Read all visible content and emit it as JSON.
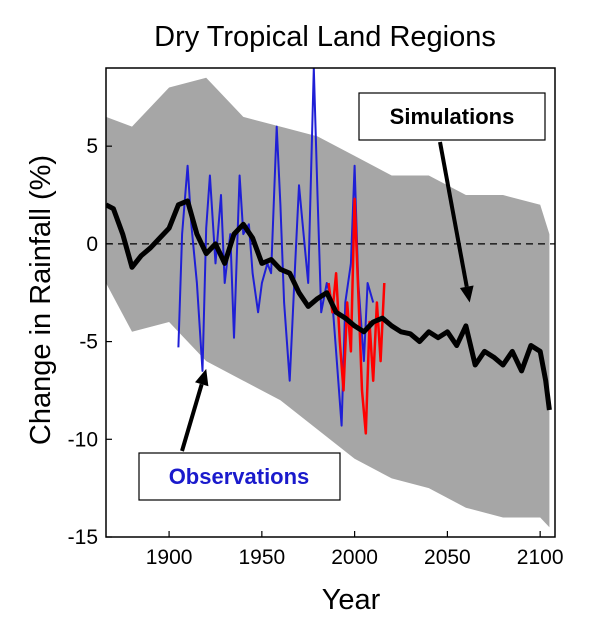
{
  "chart_data": {
    "type": "line",
    "title": "Dry Tropical Land Regions",
    "xlabel": "Year",
    "ylabel": "Change in Rainfall (%)",
    "xlim": [
      1866,
      2108
    ],
    "ylim": [
      -15,
      9
    ],
    "xticks": [
      1900,
      1950,
      2000,
      2050,
      2100
    ],
    "yticks": [
      5,
      0,
      -5,
      -10,
      -15
    ],
    "zero_line": "dashed",
    "colors": {
      "simulations_mean": "#000000",
      "simulations_range": "#a6a6a6",
      "observations": "#1f1fd6",
      "recent_observations": "#ff0000",
      "observations_label": "#1a1acc"
    },
    "series": [
      {
        "name": "Simulations",
        "x": [
          1866,
          1870,
          1875,
          1880,
          1885,
          1890,
          1895,
          1900,
          1905,
          1910,
          1915,
          1920,
          1925,
          1930,
          1935,
          1940,
          1945,
          1950,
          1955,
          1960,
          1965,
          1970,
          1975,
          1980,
          1985,
          1990,
          1995,
          2000,
          2005,
          2010,
          2015,
          2020,
          2025,
          2030,
          2035,
          2040,
          2045,
          2050,
          2055,
          2060,
          2065,
          2070,
          2075,
          2080,
          2085,
          2090,
          2095,
          2100,
          2103,
          2105
        ],
        "y": [
          2.0,
          1.8,
          0.5,
          -1.2,
          -0.6,
          -0.2,
          0.3,
          0.8,
          2.0,
          2.2,
          0.5,
          -0.5,
          0.0,
          -1.0,
          0.5,
          1.0,
          0.3,
          -1.0,
          -0.8,
          -1.3,
          -1.5,
          -2.5,
          -3.2,
          -2.8,
          -2.5,
          -3.5,
          -3.8,
          -4.2,
          -4.5,
          -4.0,
          -3.8,
          -4.2,
          -4.5,
          -4.6,
          -5.0,
          -4.5,
          -4.8,
          -4.5,
          -5.2,
          -4.2,
          -6.2,
          -5.5,
          -5.8,
          -6.2,
          -5.5,
          -6.5,
          -5.2,
          -5.5,
          -7.0,
          -8.5
        ]
      },
      {
        "name": "Simulations range",
        "x": [
          1866,
          1880,
          1900,
          1920,
          1940,
          1960,
          1980,
          2000,
          2020,
          2040,
          2060,
          2080,
          2100,
          2105
        ],
        "upper": [
          6.5,
          6.0,
          8.0,
          8.5,
          6.5,
          6.0,
          5.5,
          4.5,
          3.5,
          3.5,
          2.5,
          2.5,
          2.0,
          0.5
        ],
        "lower": [
          -2.0,
          -4.5,
          -4.0,
          -6.0,
          -7.0,
          -8.0,
          -9.5,
          -11.0,
          -12.0,
          -12.5,
          -13.5,
          -14.0,
          -14.0,
          -14.5
        ]
      },
      {
        "name": "Observations",
        "x": [
          1905,
          1907,
          1910,
          1912,
          1915,
          1918,
          1920,
          1922,
          1925,
          1928,
          1930,
          1933,
          1935,
          1938,
          1940,
          1943,
          1945,
          1948,
          1950,
          1953,
          1955,
          1958,
          1960,
          1962,
          1965,
          1968,
          1970,
          1973,
          1975,
          1978,
          1980,
          1982,
          1985,
          1988,
          1990,
          1993,
          1995,
          1998,
          2000,
          2002,
          2005,
          2007,
          2010
        ],
        "y": [
          -5.3,
          0.5,
          4.0,
          1.0,
          -2.0,
          -6.5,
          0.8,
          3.5,
          -1.0,
          2.5,
          -2.0,
          0.5,
          -4.8,
          3.5,
          0.5,
          1.0,
          -1.5,
          -3.5,
          -2.0,
          -1.0,
          -1.5,
          6.0,
          2.0,
          -3.0,
          -7.0,
          -1.0,
          3.0,
          0.0,
          -2.0,
          9.0,
          2.5,
          -3.5,
          -2.0,
          -3.0,
          -5.5,
          -9.3,
          -3.0,
          -1.0,
          4.0,
          -2.0,
          -6.0,
          -2.0,
          -3.0
        ]
      },
      {
        "name": "Recent observations",
        "x": [
          1986,
          1988,
          1990,
          1992,
          1994,
          1996,
          1998,
          2000,
          2002,
          2004,
          2006,
          2008,
          2010,
          2012,
          2014,
          2016
        ],
        "y": [
          -2.0,
          -3.5,
          -1.5,
          -5.0,
          -7.5,
          -3.0,
          -5.5,
          2.3,
          -2.5,
          -7.5,
          -9.7,
          -4.0,
          -7.0,
          -3.0,
          -6.0,
          -2.0
        ]
      }
    ],
    "annotations": [
      {
        "text": "Simulations",
        "points_to": [
          2062,
          -3.0
        ]
      },
      {
        "text": "Observations",
        "points_to": [
          1920,
          -6.4
        ]
      }
    ]
  }
}
